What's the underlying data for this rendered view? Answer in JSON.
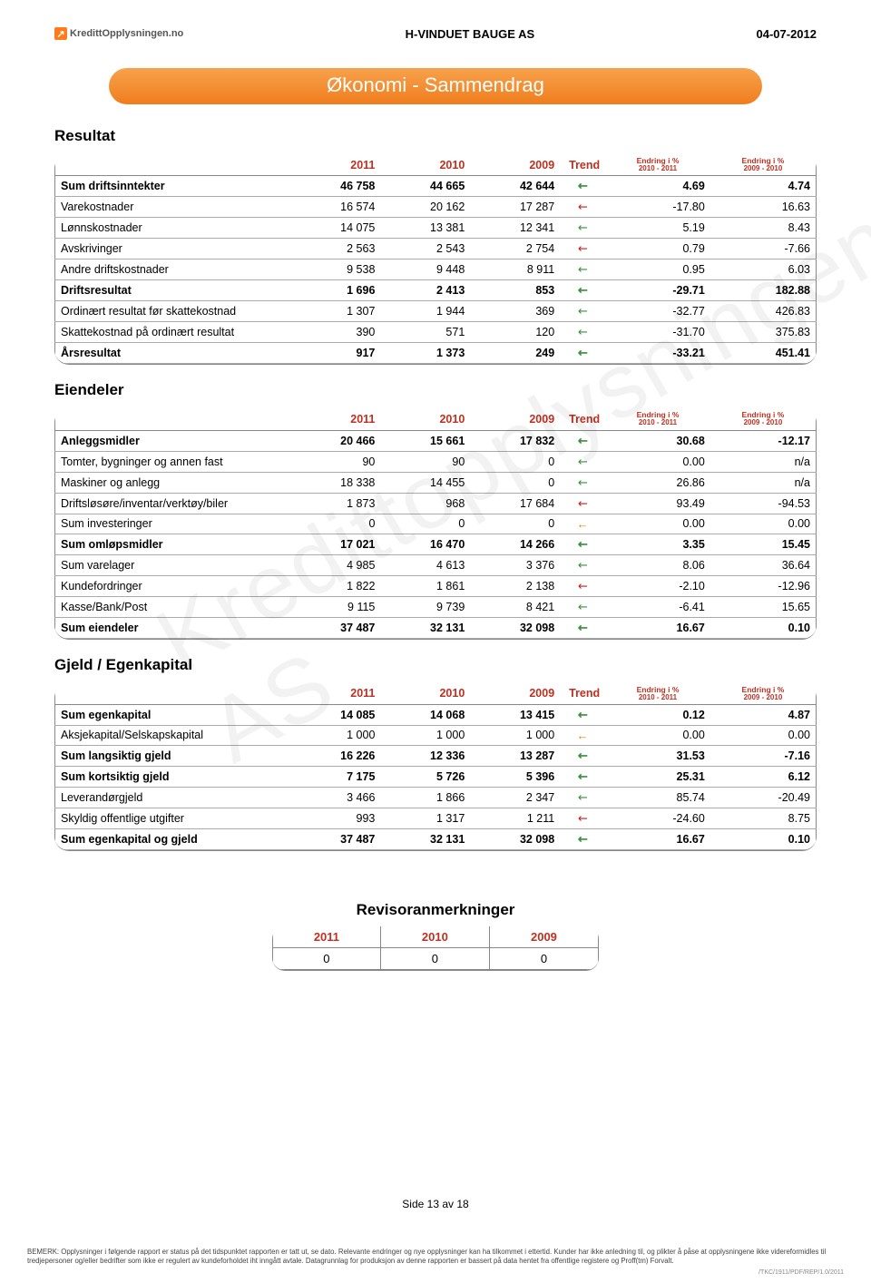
{
  "header": {
    "logo_text": "KredittOpplysningen.no",
    "company": "H-VINDUET BAUGE AS",
    "date": "04-07-2012"
  },
  "banner": "Økonomi - Sammendrag",
  "columns_main": [
    "2011",
    "2010",
    "2009"
  ],
  "col_trend": "Trend",
  "col_change1_top": "Endring i %",
  "col_change1_sub": "2010 - 2011",
  "col_change2_top": "Endring i %",
  "col_change2_sub": "2009 - 2010",
  "sections": {
    "resultat": {
      "title": "Resultat",
      "rows": [
        {
          "label": "Sum driftsinntekter",
          "v": [
            "46 758",
            "44 665",
            "42 644"
          ],
          "trend": "up",
          "c1": "4.69",
          "c2": "4.74",
          "bold": true
        },
        {
          "label": "Varekostnader",
          "v": [
            "16 574",
            "20 162",
            "17 287"
          ],
          "trend": "down",
          "c1": "-17.80",
          "c2": "16.63"
        },
        {
          "label": "Lønnskostnader",
          "v": [
            "14 075",
            "13 381",
            "12 341"
          ],
          "trend": "up",
          "c1": "5.19",
          "c2": "8.43"
        },
        {
          "label": "Avskrivinger",
          "v": [
            "2 563",
            "2 543",
            "2 754"
          ],
          "trend": "down",
          "c1": "0.79",
          "c2": "-7.66"
        },
        {
          "label": "Andre driftskostnader",
          "v": [
            "9 538",
            "9 448",
            "8 911"
          ],
          "trend": "up",
          "c1": "0.95",
          "c2": "6.03"
        },
        {
          "label": "Driftsresultat",
          "v": [
            "1 696",
            "2 413",
            "853"
          ],
          "trend": "up",
          "c1": "-29.71",
          "c2": "182.88",
          "bold": true
        },
        {
          "label": "Ordinært resultat før skattekostnad",
          "v": [
            "1 307",
            "1 944",
            "369"
          ],
          "trend": "up",
          "c1": "-32.77",
          "c2": "426.83"
        },
        {
          "label": "Skattekostnad på ordinært resultat",
          "v": [
            "390",
            "571",
            "120"
          ],
          "trend": "up",
          "c1": "-31.70",
          "c2": "375.83"
        },
        {
          "label": "Årsresultat",
          "v": [
            "917",
            "1 373",
            "249"
          ],
          "trend": "up",
          "c1": "-33.21",
          "c2": "451.41",
          "bold": true
        }
      ]
    },
    "eiendeler": {
      "title": "Eiendeler",
      "rows": [
        {
          "label": "Anleggsmidler",
          "v": [
            "20 466",
            "15 661",
            "17 832"
          ],
          "trend": "up",
          "c1": "30.68",
          "c2": "-12.17",
          "bold": true
        },
        {
          "label": "Tomter, bygninger og annen fast",
          "v": [
            "90",
            "90",
            "0"
          ],
          "trend": "up",
          "c1": "0.00",
          "c2": "n/a"
        },
        {
          "label": "Maskiner og anlegg",
          "v": [
            "18 338",
            "14 455",
            "0"
          ],
          "trend": "up",
          "c1": "26.86",
          "c2": "n/a"
        },
        {
          "label": "Driftsløsøre/inventar/verktøy/biler",
          "v": [
            "1 873",
            "968",
            "17 684"
          ],
          "trend": "down",
          "c1": "93.49",
          "c2": "-94.53"
        },
        {
          "label": "Sum investeringer",
          "v": [
            "0",
            "0",
            "0"
          ],
          "trend": "flat",
          "c1": "0.00",
          "c2": "0.00"
        },
        {
          "label": "Sum omløpsmidler",
          "v": [
            "17 021",
            "16 470",
            "14 266"
          ],
          "trend": "up",
          "c1": "3.35",
          "c2": "15.45",
          "bold": true
        },
        {
          "label": "Sum varelager",
          "v": [
            "4 985",
            "4 613",
            "3 376"
          ],
          "trend": "up",
          "c1": "8.06",
          "c2": "36.64"
        },
        {
          "label": "Kundefordringer",
          "v": [
            "1 822",
            "1 861",
            "2 138"
          ],
          "trend": "down",
          "c1": "-2.10",
          "c2": "-12.96"
        },
        {
          "label": "Kasse/Bank/Post",
          "v": [
            "9 115",
            "9 739",
            "8 421"
          ],
          "trend": "up",
          "c1": "-6.41",
          "c2": "15.65"
        },
        {
          "label": "Sum eiendeler",
          "v": [
            "37 487",
            "32 131",
            "32 098"
          ],
          "trend": "up",
          "c1": "16.67",
          "c2": "0.10",
          "bold": true
        }
      ]
    },
    "gjeld": {
      "title": "Gjeld / Egenkapital",
      "rows": [
        {
          "label": "Sum egenkapital",
          "v": [
            "14 085",
            "14 068",
            "13 415"
          ],
          "trend": "up",
          "c1": "0.12",
          "c2": "4.87",
          "bold": true
        },
        {
          "label": "Aksjekapital/Selskapskapital",
          "v": [
            "1 000",
            "1 000",
            "1 000"
          ],
          "trend": "flat",
          "c1": "0.00",
          "c2": "0.00"
        },
        {
          "label": "Sum langsiktig gjeld",
          "v": [
            "16 226",
            "12 336",
            "13 287"
          ],
          "trend": "up",
          "c1": "31.53",
          "c2": "-7.16",
          "bold": true
        },
        {
          "label": "Sum kortsiktig gjeld",
          "v": [
            "7 175",
            "5 726",
            "5 396"
          ],
          "trend": "up",
          "c1": "25.31",
          "c2": "6.12",
          "bold": true
        },
        {
          "label": "Leverandørgjeld",
          "v": [
            "3 466",
            "1 866",
            "2 347"
          ],
          "trend": "up",
          "c1": "85.74",
          "c2": "-20.49"
        },
        {
          "label": "Skyldig offentlige utgifter",
          "v": [
            "993",
            "1 317",
            "1 211"
          ],
          "trend": "down",
          "c1": "-24.60",
          "c2": "8.75"
        },
        {
          "label": "Sum egenkapital og gjeld",
          "v": [
            "37 487",
            "32 131",
            "32 098"
          ],
          "trend": "up",
          "c1": "16.67",
          "c2": "0.10",
          "bold": true
        }
      ]
    }
  },
  "revisor": {
    "title": "Revisoranmerkninger",
    "years": [
      "2011",
      "2010",
      "2009"
    ],
    "values": [
      "0",
      "0",
      "0"
    ]
  },
  "footer_page": "Side 13 av 18",
  "disclaimer": "BEMERK: Opplysninger i følgende rapport er status på det tidspunktet rapporten er tatt ut, se dato. Relevante endringer og nye opplysninger kan ha tilkommet i ettertid. Kunder har ikke anledning til, og plikter å påse at opplysningene ikke videreformidles til tredjepersoner og/eller bedrifter som ikke er regulert av kundeforholdet iht inngått avtale. Datagrunnlag for produksjon av denne rapporten er bassert på data hentet fra offentlige registere og Proff(tm) Forvalt.",
  "footer_code": "/TKC/1911/PDF/REP/1.0/2011",
  "trend_glyphs": {
    "up": "↖",
    "down": "↙",
    "flat": "←"
  },
  "trend_class": {
    "up": "t-up-green",
    "down": "t-down-red",
    "flat": "t-flat-orange"
  }
}
